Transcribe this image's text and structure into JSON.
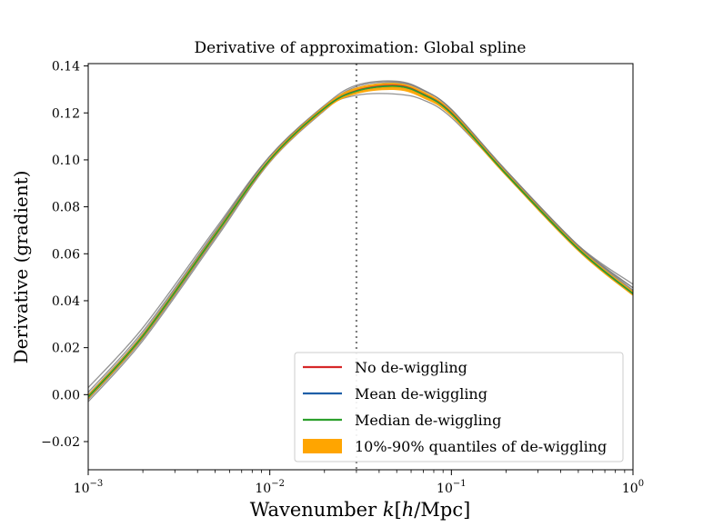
{
  "chart_data": {
    "type": "line",
    "title": "Derivative of approximation: Global spline",
    "xlabel_text": "Wavenumber ",
    "xlabel_var": "k",
    "xlabel_unit_open": "[",
    "xlabel_unit_h": "h",
    "xlabel_unit_close": "/Mpc]",
    "ylabel": "Derivative (gradient)",
    "xscale": "log",
    "xlim": [
      0.001,
      1
    ],
    "ylim": [
      -0.032,
      0.141
    ],
    "xticks": [
      {
        "value": 0.001,
        "base": "10",
        "exp": "−3"
      },
      {
        "value": 0.01,
        "base": "10",
        "exp": "−2"
      },
      {
        "value": 0.1,
        "base": "10",
        "exp": "−1"
      },
      {
        "value": 1,
        "base": "10",
        "exp": "0"
      }
    ],
    "yticks": [
      {
        "value": -0.02,
        "label": "−0.02"
      },
      {
        "value": 0.0,
        "label": "0.00"
      },
      {
        "value": 0.02,
        "label": "0.02"
      },
      {
        "value": 0.04,
        "label": "0.04"
      },
      {
        "value": 0.06,
        "label": "0.06"
      },
      {
        "value": 0.08,
        "label": "0.08"
      },
      {
        "value": 0.1,
        "label": "0.10"
      },
      {
        "value": 0.12,
        "label": "0.12"
      },
      {
        "value": 0.14,
        "label": "0.14"
      }
    ],
    "vline": {
      "x": 0.03,
      "style": "dotted",
      "color": "#808080"
    },
    "grid": false,
    "legend_position": "lower right",
    "x": [
      0.001,
      0.002,
      0.005,
      0.01,
      0.02,
      0.03,
      0.05,
      0.07,
      0.1,
      0.2,
      0.5,
      1.0
    ],
    "series": [
      {
        "name": "No de-wiggling",
        "color": "#d62728",
        "values": [
          -0.001,
          0.025,
          0.068,
          0.1,
          0.122,
          0.1295,
          0.1317,
          0.128,
          0.12,
          0.094,
          0.062,
          0.043
        ]
      },
      {
        "name": "Mean de-wiggling",
        "color": "#1f5fa8",
        "values": [
          -0.001,
          0.025,
          0.068,
          0.1,
          0.122,
          0.1293,
          0.1314,
          0.1278,
          0.1198,
          0.094,
          0.062,
          0.043
        ]
      },
      {
        "name": "Median de-wiggling",
        "color": "#2ca02c",
        "values": [
          -0.001,
          0.025,
          0.068,
          0.1,
          0.122,
          0.1293,
          0.1314,
          0.1278,
          0.1198,
          0.094,
          0.062,
          0.043
        ]
      }
    ],
    "band": {
      "name": "10%-90% quantiles of de-wiggling",
      "color": "#ffa500",
      "lower": [
        -0.002,
        0.024,
        0.067,
        0.099,
        0.121,
        0.128,
        0.1297,
        0.1262,
        0.1185,
        0.093,
        0.061,
        0.042
      ],
      "upper": [
        0.0,
        0.026,
        0.069,
        0.101,
        0.123,
        0.1308,
        0.1327,
        0.1292,
        0.121,
        0.095,
        0.063,
        0.044
      ]
    },
    "ensemble": {
      "color": "#808080",
      "values": [
        [
          -0.003,
          0.023,
          0.066,
          0.099,
          0.121,
          0.1303,
          0.1328,
          0.1295,
          0.1215,
          0.095,
          0.063,
          0.044
        ],
        [
          -0.002,
          0.024,
          0.067,
          0.1,
          0.1222,
          0.1312,
          0.1332,
          0.1297,
          0.1215,
          0.0955,
          0.0635,
          0.0445
        ],
        [
          0.0,
          0.026,
          0.069,
          0.1015,
          0.1232,
          0.1318,
          0.1335,
          0.1298,
          0.1213,
          0.0955,
          0.0635,
          0.0455
        ],
        [
          0.001,
          0.027,
          0.0695,
          0.1015,
          0.1228,
          0.1305,
          0.1322,
          0.1285,
          0.1205,
          0.095,
          0.063,
          0.0455
        ],
        [
          -0.002,
          0.024,
          0.067,
          0.0995,
          0.1215,
          0.1288,
          0.1308,
          0.1272,
          0.1192,
          0.0935,
          0.0615,
          0.0435
        ],
        [
          0.003,
          0.0285,
          0.0705,
          0.1015,
          0.122,
          0.1275,
          0.128,
          0.1255,
          0.118,
          0.094,
          0.0635,
          0.047
        ]
      ]
    }
  }
}
